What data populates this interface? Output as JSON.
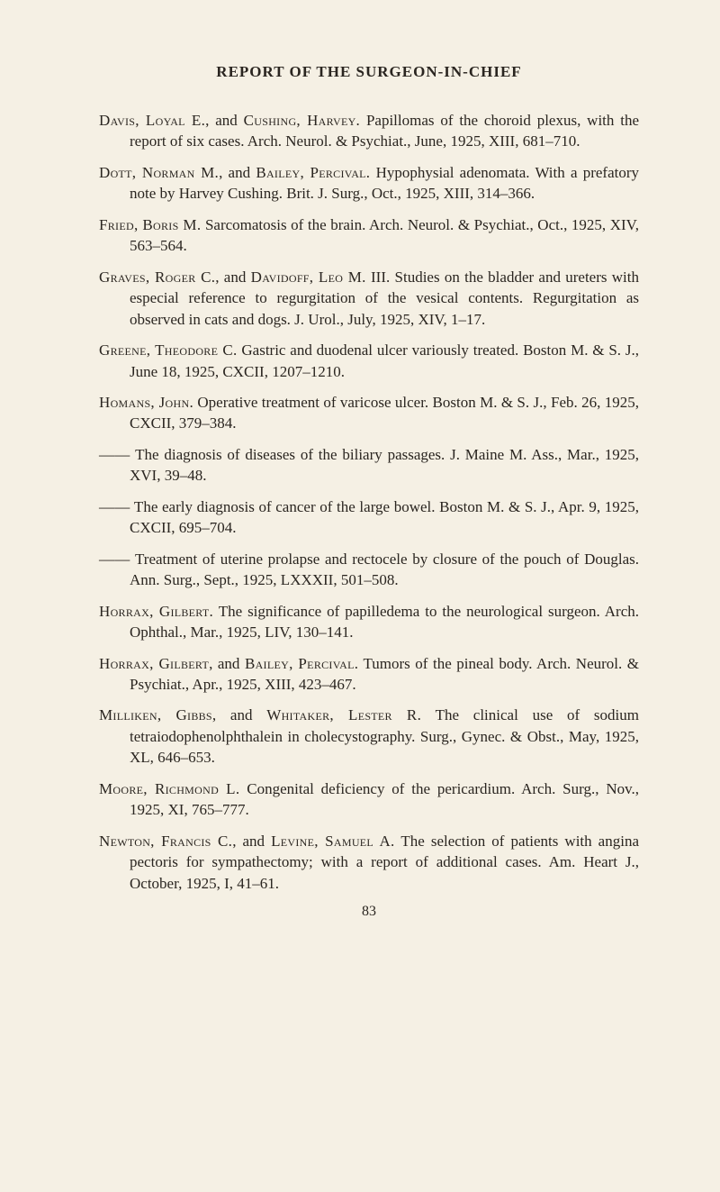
{
  "header": "REPORT OF THE SURGEON-IN-CHIEF",
  "entries": [
    {
      "authors": "Davis, Loyal E.",
      "rest": ", and ",
      "authors2": "Cushing, Harvey.",
      "text": " Papillomas of the choroid plexus, with the report of six cases. Arch. Neurol. & Psychiat., June, 1925, XIII, 681–710."
    },
    {
      "authors": "Dott, Norman M.",
      "rest": ", and ",
      "authors2": "Bailey, Percival.",
      "text": " Hypophysial adenomata. With a prefatory note by Harvey Cushing. Brit. J. Surg., Oct., 1925, XIII, 314–366."
    },
    {
      "authors": "Fried, Boris M.",
      "rest": "",
      "authors2": "",
      "text": " Sarcomatosis of the brain. Arch. Neurol. & Psychiat., Oct., 1925, XIV, 563–564."
    },
    {
      "authors": "Graves, Roger C.",
      "rest": ", and ",
      "authors2": "Davidoff, Leo M.",
      "text": " III. Studies on the bladder and ureters with especial reference to regurgitation of the vesical contents. Regurgitation as observed in cats and dogs. J. Urol., July, 1925, XIV, 1–17."
    },
    {
      "authors": "Greene, Theodore C.",
      "rest": "",
      "authors2": "",
      "text": " Gastric and duodenal ulcer variously treated. Boston M. & S. J., June 18, 1925, CXCII, 1207–1210."
    },
    {
      "authors": "Homans, John.",
      "rest": "",
      "authors2": "",
      "text": " Operative treatment of varicose ulcer. Boston M. & S. J., Feb. 26, 1925, CXCII, 379–384."
    },
    {
      "authors": "——",
      "rest": "",
      "authors2": "",
      "text": " The diagnosis of diseases of the biliary passages. J. Maine M. Ass., Mar., 1925, XVI, 39–48."
    },
    {
      "authors": "——",
      "rest": "",
      "authors2": "",
      "text": " The early diagnosis of cancer of the large bowel. Boston M. & S. J., Apr. 9, 1925, CXCII, 695–704."
    },
    {
      "authors": "——",
      "rest": "",
      "authors2": "",
      "text": " Treatment of uterine prolapse and rectocele by closure of the pouch of Douglas. Ann. Surg., Sept., 1925, LXXXII, 501–508."
    },
    {
      "authors": "Horrax, Gilbert.",
      "rest": "",
      "authors2": "",
      "text": " The significance of papilledema to the neurological surgeon. Arch. Ophthal., Mar., 1925, LIV, 130–141."
    },
    {
      "authors": "Horrax, Gilbert",
      "rest": ", and ",
      "authors2": "Bailey, Percival.",
      "text": " Tumors of the pineal body. Arch. Neurol. & Psychiat., Apr., 1925, XIII, 423–467."
    },
    {
      "authors": "Milliken, Gibbs",
      "rest": ", and ",
      "authors2": "Whitaker, Lester R.",
      "text": " The clinical use of sodium tetraiodophenolphthalein in cholecystography. Surg., Gynec. & Obst., May, 1925, XL, 646–653."
    },
    {
      "authors": "Moore, Richmond L.",
      "rest": "",
      "authors2": "",
      "text": " Congenital deficiency of the pericardium. Arch. Surg., Nov., 1925, XI, 765–777."
    },
    {
      "authors": "Newton, Francis C.",
      "rest": ", and ",
      "authors2": "Levine, Samuel A.",
      "text": " The selection of patients with angina pectoris for sympathectomy; with a report of additional cases. Am. Heart J., October, 1925, I, 41–61."
    }
  ],
  "pagenum": "83",
  "colors": {
    "background": "#f5f0e4",
    "text": "#2a2520"
  },
  "typography": {
    "body_fontsize_pt": 12,
    "header_fontsize_pt": 12,
    "font_family": "Times New Roman"
  }
}
